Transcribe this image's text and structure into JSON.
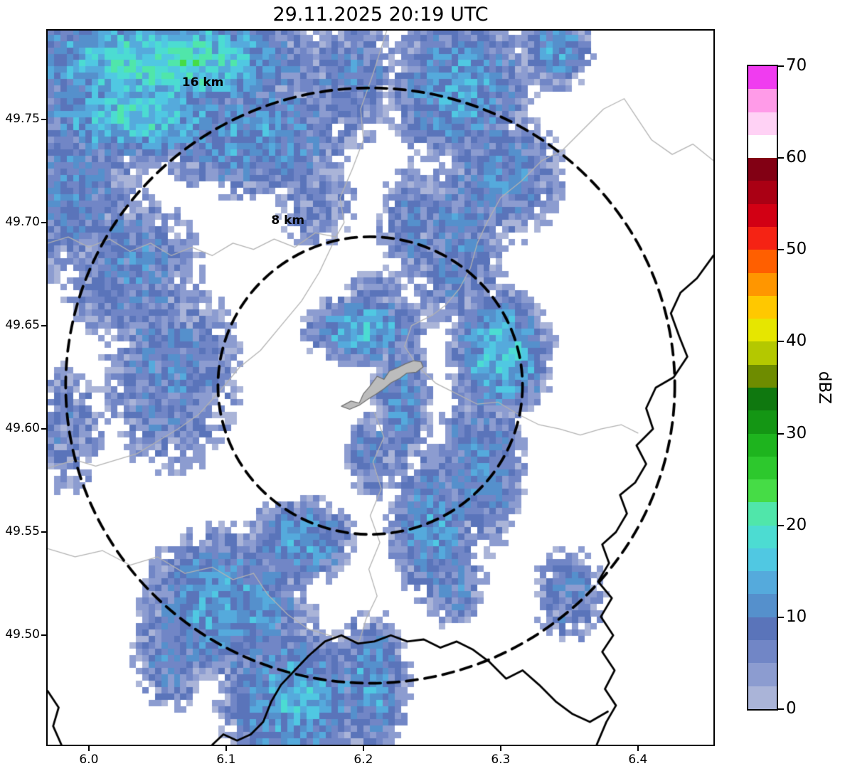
{
  "title": "29.11.2025 20:19 UTC",
  "axes": {
    "xticks": [
      {
        "value": 6.0,
        "label": "6.0"
      },
      {
        "value": 6.1,
        "label": "6.1"
      },
      {
        "value": 6.2,
        "label": "6.2"
      },
      {
        "value": 6.3,
        "label": "6.3"
      },
      {
        "value": 6.4,
        "label": "6.4"
      }
    ],
    "yticks": [
      {
        "value": 49.5,
        "label": "49.50"
      },
      {
        "value": 49.55,
        "label": "49.55"
      },
      {
        "value": 49.6,
        "label": "49.60"
      },
      {
        "value": 49.65,
        "label": "49.65"
      },
      {
        "value": 49.7,
        "label": "49.70"
      },
      {
        "value": 49.75,
        "label": "49.75"
      }
    ]
  },
  "range_rings": {
    "center": {
      "lon": 6.205,
      "lat": 49.621
    },
    "rings": [
      {
        "radius_km": 8,
        "label": "8 km",
        "label_lon": 6.145,
        "label_lat": 49.701
      },
      {
        "radius_km": 16,
        "label": "16 km",
        "label_lon": 6.083,
        "label_lat": 49.768
      }
    ]
  },
  "colorbar": {
    "label": "dBZ",
    "min": 0,
    "max": 70,
    "band_step": 2.5,
    "tick_values": [
      0,
      10,
      20,
      30,
      40,
      50,
      60,
      70
    ],
    "colors": [
      "#aab4d8",
      "#8c9cd0",
      "#7186c6",
      "#5a74ba",
      "#5590cc",
      "#55aadc",
      "#50c8e2",
      "#4cdcd2",
      "#50e6aa",
      "#46dc46",
      "#2dc82d",
      "#1eb41e",
      "#149614",
      "#0f780f",
      "#6e8c00",
      "#b4c800",
      "#e6e600",
      "#ffc800",
      "#ff9600",
      "#ff5f00",
      "#f52314",
      "#d20014",
      "#aa0014",
      "#820014",
      "#ffffff",
      "#ffd2f5",
      "#ff9be8",
      "#f03cf0"
    ]
  },
  "chart_data": {
    "type": "heatmap",
    "title": "29.11.2025 20:19 UTC",
    "units": "dBZ",
    "xlabel": "",
    "ylabel": "",
    "xlim": [
      5.97,
      6.455
    ],
    "ylim": [
      49.447,
      49.793
    ],
    "grid": false,
    "legend_position": "right-colorbar",
    "grid_cell_deg": {
      "dlon": 0.0046,
      "dlat": 0.0031
    },
    "noise_seed": 20251129,
    "noise_amplitude_dbz": 4.5,
    "precip_cells": [
      {
        "lon": 6.055,
        "lat": 49.778,
        "rx": 0.105,
        "ry": 0.026,
        "peak_dbz": 19
      },
      {
        "lon": 6.035,
        "lat": 49.752,
        "rx": 0.075,
        "ry": 0.022,
        "peak_dbz": 17
      },
      {
        "lon": 6.12,
        "lat": 49.742,
        "rx": 0.065,
        "ry": 0.028,
        "peak_dbz": 12
      },
      {
        "lon": 5.985,
        "lat": 49.72,
        "rx": 0.05,
        "ry": 0.045,
        "peak_dbz": 9
      },
      {
        "lon": 6.19,
        "lat": 49.768,
        "rx": 0.034,
        "ry": 0.028,
        "peak_dbz": 9
      },
      {
        "lon": 6.27,
        "lat": 49.765,
        "rx": 0.05,
        "ry": 0.034,
        "peak_dbz": 13
      },
      {
        "lon": 6.34,
        "lat": 49.785,
        "rx": 0.025,
        "ry": 0.02,
        "peak_dbz": 12
      },
      {
        "lon": 6.3,
        "lat": 49.722,
        "rx": 0.042,
        "ry": 0.03,
        "peak_dbz": 10
      },
      {
        "lon": 6.268,
        "lat": 49.69,
        "rx": 0.033,
        "ry": 0.042,
        "peak_dbz": 9
      },
      {
        "lon": 6.235,
        "lat": 49.7,
        "rx": 0.022,
        "ry": 0.027,
        "peak_dbz": 8
      },
      {
        "lon": 6.165,
        "lat": 49.71,
        "rx": 0.027,
        "ry": 0.02,
        "peak_dbz": 6
      },
      {
        "lon": 6.03,
        "lat": 49.678,
        "rx": 0.048,
        "ry": 0.033,
        "peak_dbz": 9
      },
      {
        "lon": 6.06,
        "lat": 49.627,
        "rx": 0.046,
        "ry": 0.044,
        "peak_dbz": 9
      },
      {
        "lon": 5.985,
        "lat": 49.6,
        "rx": 0.022,
        "ry": 0.03,
        "peak_dbz": 7
      },
      {
        "lon": 6.2,
        "lat": 49.648,
        "rx": 0.042,
        "ry": 0.016,
        "peak_dbz": 15
      },
      {
        "lon": 6.21,
        "lat": 49.665,
        "rx": 0.02,
        "ry": 0.012,
        "peak_dbz": 6
      },
      {
        "lon": 6.228,
        "lat": 49.613,
        "rx": 0.02,
        "ry": 0.034,
        "peak_dbz": 11
      },
      {
        "lon": 6.205,
        "lat": 49.587,
        "rx": 0.016,
        "ry": 0.02,
        "peak_dbz": 9
      },
      {
        "lon": 6.3,
        "lat": 49.636,
        "rx": 0.036,
        "ry": 0.03,
        "peak_dbz": 16
      },
      {
        "lon": 6.285,
        "lat": 49.582,
        "rx": 0.03,
        "ry": 0.04,
        "peak_dbz": 10
      },
      {
        "lon": 6.25,
        "lat": 49.553,
        "rx": 0.03,
        "ry": 0.034,
        "peak_dbz": 12
      },
      {
        "lon": 6.155,
        "lat": 49.546,
        "rx": 0.036,
        "ry": 0.02,
        "peak_dbz": 13
      },
      {
        "lon": 6.1,
        "lat": 49.514,
        "rx": 0.058,
        "ry": 0.036,
        "peak_dbz": 13
      },
      {
        "lon": 6.15,
        "lat": 49.468,
        "rx": 0.052,
        "ry": 0.036,
        "peak_dbz": 14
      },
      {
        "lon": 6.205,
        "lat": 49.477,
        "rx": 0.027,
        "ry": 0.032,
        "peak_dbz": 12
      },
      {
        "lon": 6.06,
        "lat": 49.49,
        "rx": 0.025,
        "ry": 0.025,
        "peak_dbz": 9
      },
      {
        "lon": 6.265,
        "lat": 49.525,
        "rx": 0.022,
        "ry": 0.02,
        "peak_dbz": 9
      },
      {
        "lon": 6.35,
        "lat": 49.52,
        "rx": 0.024,
        "ry": 0.022,
        "peak_dbz": 8
      }
    ],
    "boundaries_gray": [
      [
        [
          6.217,
          49.793
        ],
        [
          6.207,
          49.772
        ],
        [
          6.198,
          49.755
        ],
        [
          6.2,
          49.74
        ],
        [
          6.192,
          49.726
        ],
        [
          6.183,
          49.712
        ],
        [
          6.186,
          49.7
        ],
        [
          6.18,
          49.693
        ],
        [
          6.165,
          49.695
        ],
        [
          6.15,
          49.688
        ],
        [
          6.135,
          49.692
        ],
        [
          6.12,
          49.687
        ],
        [
          6.105,
          49.69
        ],
        [
          6.09,
          49.684
        ],
        [
          6.075,
          49.688
        ],
        [
          6.06,
          49.684
        ],
        [
          6.045,
          49.69
        ],
        [
          6.03,
          49.686
        ],
        [
          6.015,
          49.692
        ],
        [
          6.0,
          49.688
        ],
        [
          5.985,
          49.693
        ],
        [
          5.97,
          49.69
        ]
      ],
      [
        [
          6.18,
          49.693
        ],
        [
          6.168,
          49.676
        ],
        [
          6.155,
          49.662
        ],
        [
          6.14,
          49.65
        ],
        [
          6.125,
          49.638
        ],
        [
          6.11,
          49.63
        ],
        [
          6.095,
          49.618
        ],
        [
          6.08,
          49.607
        ],
        [
          6.065,
          49.6
        ],
        [
          6.05,
          49.594
        ],
        [
          6.035,
          49.588
        ],
        [
          6.02,
          49.585
        ],
        [
          6.005,
          49.582
        ],
        [
          5.99,
          49.585
        ],
        [
          5.97,
          49.581
        ]
      ],
      [
        [
          6.455,
          49.73
        ],
        [
          6.44,
          49.738
        ],
        [
          6.425,
          49.733
        ],
        [
          6.41,
          49.74
        ],
        [
          6.4,
          49.75
        ],
        [
          6.39,
          49.76
        ],
        [
          6.375,
          49.755
        ],
        [
          6.36,
          49.745
        ],
        [
          6.345,
          49.735
        ],
        [
          6.33,
          49.73
        ],
        [
          6.315,
          49.72
        ],
        [
          6.3,
          49.712
        ],
        [
          6.29,
          49.7
        ],
        [
          6.283,
          49.69
        ],
        [
          6.278,
          49.678
        ],
        [
          6.27,
          49.668
        ],
        [
          6.26,
          49.66
        ],
        [
          6.25,
          49.655
        ],
        [
          6.235,
          49.65
        ],
        [
          6.23,
          49.64
        ]
      ],
      [
        [
          6.23,
          49.64
        ],
        [
          6.24,
          49.63
        ],
        [
          6.253,
          49.622
        ],
        [
          6.268,
          49.617
        ],
        [
          6.283,
          49.612
        ],
        [
          6.298,
          49.613
        ],
        [
          6.313,
          49.607
        ],
        [
          6.328,
          49.602
        ],
        [
          6.343,
          49.6
        ],
        [
          6.358,
          49.597
        ],
        [
          6.373,
          49.6
        ],
        [
          6.388,
          49.602
        ],
        [
          6.4,
          49.598
        ]
      ],
      [
        [
          6.208,
          49.608
        ],
        [
          6.215,
          49.596
        ],
        [
          6.207,
          49.584
        ],
        [
          6.213,
          49.571
        ],
        [
          6.205,
          49.558
        ],
        [
          6.212,
          49.545
        ],
        [
          6.204,
          49.532
        ],
        [
          6.21,
          49.519
        ],
        [
          6.202,
          49.508
        ],
        [
          6.197,
          49.497
        ]
      ],
      [
        [
          5.97,
          49.542
        ],
        [
          5.99,
          49.538
        ],
        [
          6.01,
          49.541
        ],
        [
          6.03,
          49.534
        ],
        [
          6.05,
          49.538
        ],
        [
          6.07,
          49.53
        ],
        [
          6.09,
          49.533
        ],
        [
          6.105,
          49.527
        ],
        [
          6.12,
          49.53
        ]
      ],
      [
        [
          6.12,
          49.53
        ],
        [
          6.13,
          49.52
        ],
        [
          6.145,
          49.51
        ],
        [
          6.16,
          49.503
        ],
        [
          6.175,
          49.5
        ],
        [
          6.19,
          49.498
        ],
        [
          6.197,
          49.497
        ]
      ]
    ],
    "boundaries_black": [
      [
        [
          6.455,
          49.684
        ],
        [
          6.443,
          49.673
        ],
        [
          6.431,
          49.666
        ],
        [
          6.424,
          49.656
        ],
        [
          6.43,
          49.645
        ],
        [
          6.436,
          49.635
        ],
        [
          6.426,
          49.625
        ],
        [
          6.413,
          49.62
        ],
        [
          6.406,
          49.61
        ],
        [
          6.411,
          49.6
        ],
        [
          6.399,
          49.592
        ],
        [
          6.406,
          49.583
        ],
        [
          6.398,
          49.574
        ],
        [
          6.387,
          49.568
        ],
        [
          6.392,
          49.559
        ],
        [
          6.384,
          49.55
        ],
        [
          6.374,
          49.544
        ],
        [
          6.379,
          49.535
        ],
        [
          6.371,
          49.526
        ],
        [
          6.381,
          49.518
        ],
        [
          6.373,
          49.509
        ],
        [
          6.382,
          49.5
        ],
        [
          6.374,
          49.492
        ],
        [
          6.383,
          49.483
        ],
        [
          6.376,
          49.474
        ],
        [
          6.384,
          49.466
        ],
        [
          6.377,
          49.458
        ],
        [
          6.37,
          49.447
        ]
      ],
      [
        [
          6.378,
          49.463
        ],
        [
          6.365,
          49.458
        ],
        [
          6.352,
          49.462
        ],
        [
          6.34,
          49.468
        ],
        [
          6.328,
          49.476
        ],
        [
          6.316,
          49.483
        ],
        [
          6.304,
          49.479
        ],
        [
          6.292,
          49.487
        ],
        [
          6.28,
          49.493
        ],
        [
          6.268,
          49.497
        ],
        [
          6.256,
          49.494
        ],
        [
          6.244,
          49.498
        ],
        [
          6.232,
          49.497
        ],
        [
          6.22,
          49.5
        ],
        [
          6.208,
          49.497
        ],
        [
          6.196,
          49.496
        ],
        [
          6.184,
          49.5
        ],
        [
          6.172,
          49.497
        ],
        [
          6.16,
          49.49
        ],
        [
          6.15,
          49.483
        ],
        [
          6.14,
          49.476
        ],
        [
          6.133,
          49.468
        ],
        [
          6.127,
          49.458
        ],
        [
          6.118,
          49.452
        ],
        [
          6.108,
          49.449
        ],
        [
          6.098,
          49.452
        ],
        [
          6.09,
          49.447
        ]
      ],
      [
        [
          5.97,
          49.473
        ],
        [
          5.978,
          49.465
        ],
        [
          5.974,
          49.456
        ],
        [
          5.98,
          49.447
        ]
      ]
    ],
    "city_polygon": [
      [
        6.184,
        49.611
      ],
      [
        6.191,
        49.6135
      ],
      [
        6.197,
        49.6125
      ],
      [
        6.2,
        49.617
      ],
      [
        6.2045,
        49.6205
      ],
      [
        6.21,
        49.6255
      ],
      [
        6.215,
        49.624
      ],
      [
        6.219,
        49.628
      ],
      [
        6.2245,
        49.6295
      ],
      [
        6.2305,
        49.6315
      ],
      [
        6.2365,
        49.633
      ],
      [
        6.242,
        49.6325
      ],
      [
        6.2435,
        49.63
      ],
      [
        6.2385,
        49.6275
      ],
      [
        6.2315,
        49.627
      ],
      [
        6.2265,
        49.6245
      ],
      [
        6.2205,
        49.6225
      ],
      [
        6.215,
        49.6195
      ],
      [
        6.2095,
        49.617
      ],
      [
        6.2035,
        49.6145
      ],
      [
        6.197,
        49.6115
      ],
      [
        6.19,
        49.6095
      ]
    ]
  }
}
